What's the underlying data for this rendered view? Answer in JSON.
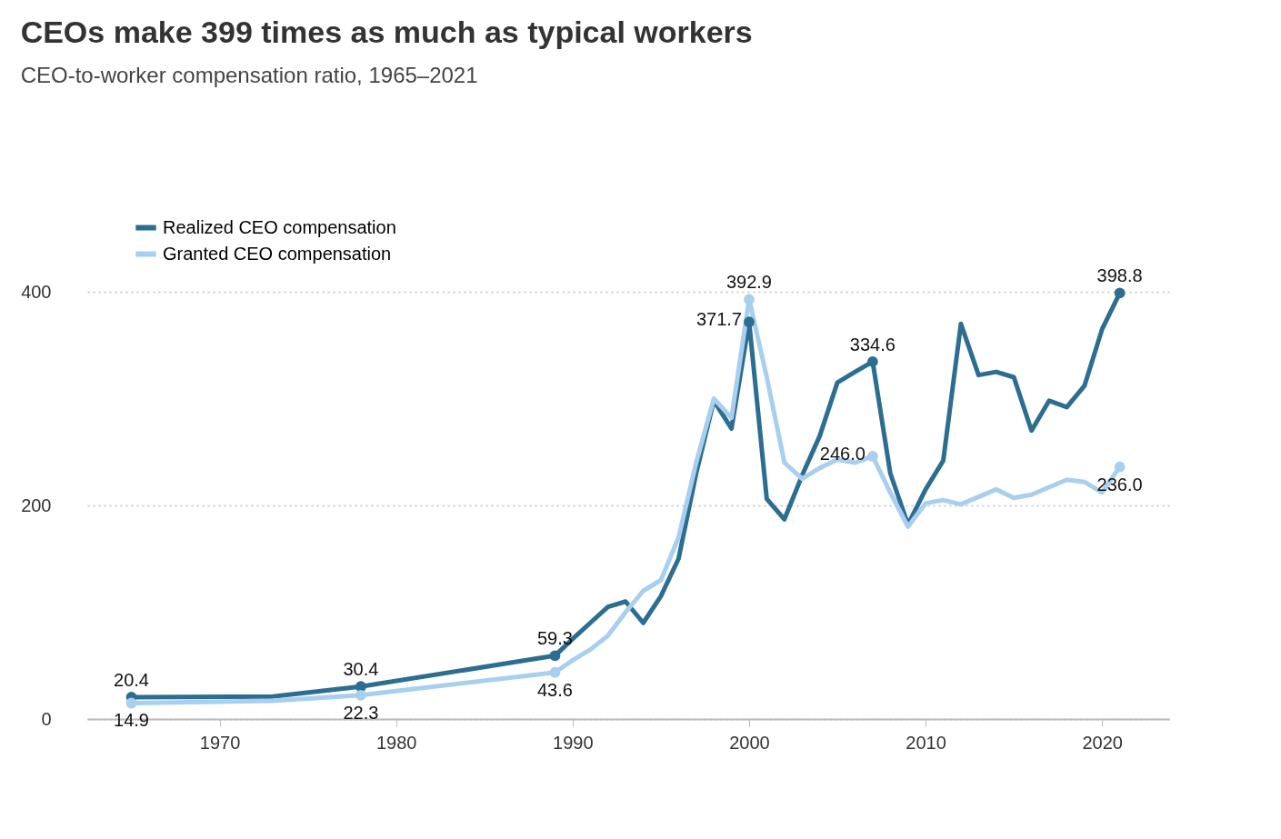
{
  "chart_data": {
    "type": "line",
    "title": "CEOs make 399 times as much as typical workers",
    "subtitle": "CEO-to-worker compensation ratio, 1965–2021",
    "xlim": [
      1962.5,
      2023.8
    ],
    "xticks": [
      1970,
      1980,
      1990,
      2000,
      2010,
      2020
    ],
    "ylim": [
      0,
      400
    ],
    "yticks": [
      0,
      200,
      400
    ],
    "grid": "y",
    "legend": "top left",
    "series": [
      {
        "name": "Realized CEO compensation",
        "color": "#2c6e91",
        "x": [
          1965,
          1973,
          1978,
          1989,
          1990,
          1991,
          1992,
          1993,
          1994,
          1995,
          1996,
          1997,
          1998,
          1999,
          2000,
          2001,
          2002,
          2003,
          2004,
          2005,
          2006,
          2007,
          2008,
          2009,
          2010,
          2011,
          2012,
          2013,
          2014,
          2015,
          2016,
          2017,
          2018,
          2019,
          2020,
          2021
        ],
        "values": [
          20.4,
          21,
          30.4,
          59.3,
          75,
          90,
          105,
          110,
          90,
          115,
          150,
          230,
          298,
          272,
          371.7,
          206,
          187,
          228,
          265,
          315,
          325,
          334.6,
          230,
          182,
          215,
          242,
          370,
          322,
          325,
          320,
          270,
          298,
          292,
          312,
          365,
          398.8
        ],
        "value_labels": [
          "20.4",
          null,
          "30.4",
          "59.3",
          null,
          null,
          null,
          null,
          null,
          null,
          null,
          null,
          null,
          null,
          "371.7",
          null,
          null,
          null,
          null,
          null,
          null,
          "334.6",
          null,
          null,
          null,
          null,
          null,
          null,
          null,
          null,
          null,
          null,
          null,
          null,
          null,
          "398.8"
        ]
      },
      {
        "name": "Granted CEO compensation",
        "color": "#a9cfee",
        "x": [
          1965,
          1973,
          1978,
          1989,
          1990,
          1991,
          1992,
          1993,
          1994,
          1995,
          1996,
          1997,
          1998,
          1999,
          2000,
          2001,
          2002,
          2003,
          2004,
          2005,
          2006,
          2007,
          2008,
          2009,
          2010,
          2011,
          2012,
          2013,
          2014,
          2015,
          2016,
          2017,
          2018,
          2019,
          2020,
          2021
        ],
        "values": [
          14.9,
          17,
          22.3,
          43.6,
          55,
          65,
          78,
          100,
          120,
          130,
          170,
          240,
          300,
          282,
          392.9,
          320,
          240,
          225,
          235,
          243,
          240,
          246.0,
          212,
          180,
          202,
          205,
          201,
          208,
          215,
          207,
          210,
          217,
          224,
          222,
          212,
          236.0
        ],
        "value_labels": [
          "14.9",
          null,
          "22.3",
          "43.6",
          null,
          null,
          null,
          null,
          null,
          null,
          null,
          null,
          null,
          null,
          "392.9",
          null,
          null,
          null,
          null,
          null,
          null,
          "246.0",
          null,
          null,
          null,
          null,
          null,
          null,
          null,
          null,
          null,
          null,
          null,
          null,
          null,
          "236.0"
        ]
      }
    ]
  }
}
